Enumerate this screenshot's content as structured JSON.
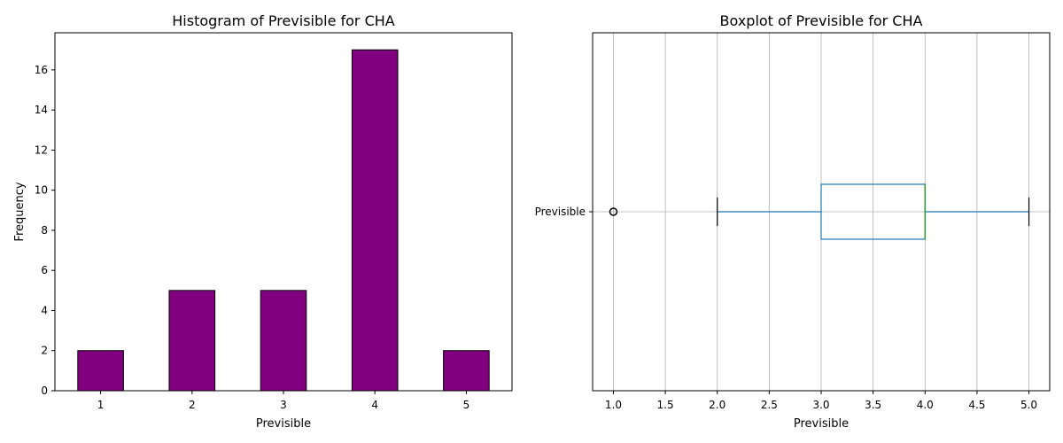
{
  "chart_data": [
    {
      "type": "bar",
      "title": "Histogram of Previsible for CHA",
      "xlabel": "Previsible",
      "ylabel": "Frequency",
      "categories": [
        "1",
        "2",
        "3",
        "4",
        "5"
      ],
      "values": [
        2,
        5,
        5,
        17,
        2
      ],
      "ylim": [
        0,
        17.85
      ],
      "yticks": [
        0,
        2,
        4,
        6,
        8,
        10,
        12,
        14,
        16
      ],
      "bar_color": "#800080",
      "edge_color": "#000000",
      "grid": false
    },
    {
      "type": "boxplot",
      "title": "Boxplot of Previsible for CHA",
      "xlabel": "Previsible",
      "category": "Previsible",
      "orientation": "horizontal",
      "min": 2,
      "q1": 3,
      "median": 4,
      "q3": 4,
      "max": 5,
      "outliers": [
        1
      ],
      "xlim": [
        0.8,
        5.2
      ],
      "xticks": [
        1.0,
        1.5,
        2.0,
        2.5,
        3.0,
        3.5,
        4.0,
        4.5,
        5.0
      ],
      "box_color": "#1f77b4",
      "median_color": "#2ca02c",
      "grid": true
    }
  ]
}
